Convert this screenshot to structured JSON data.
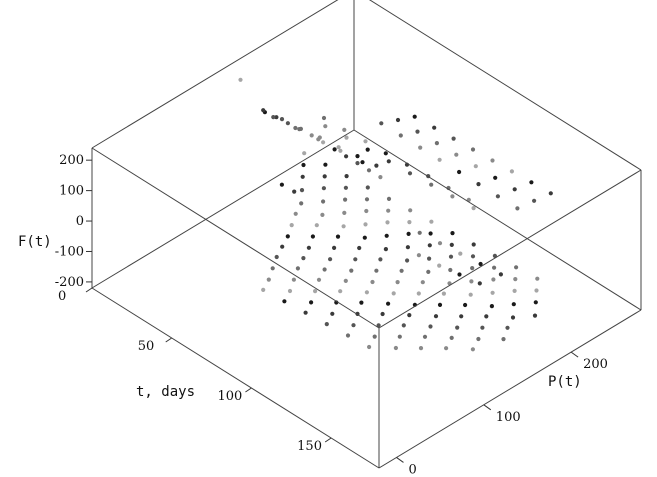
{
  "chart_data": {
    "type": "scatter",
    "dimensions": 3,
    "title": "",
    "xlabel": "t, days",
    "ylabel": "P(t)",
    "zlabel": "F(t)",
    "xticks": [
      "0",
      "50",
      "100",
      "150"
    ],
    "yticks": [
      "0",
      "100",
      "200"
    ],
    "zticks": [
      "200",
      "100",
      "0",
      "-100",
      "-200"
    ],
    "xlim": [
      0,
      180
    ],
    "ylim": [
      -20,
      280
    ],
    "zlim": [
      -220,
      240
    ],
    "grid": false,
    "box": true,
    "point_colors": [
      "#1a1a1a",
      "#3a3a3a",
      "#555555",
      "#707070",
      "#8a8a8a",
      "#a6a6a6"
    ],
    "series": [
      {
        "points": [
          [
            0,
            178,
            15
          ],
          [
            5,
            182,
            8
          ],
          [
            10,
            186,
            -2
          ],
          [
            15,
            190,
            -12
          ],
          [
            20,
            195,
            -25
          ],
          [
            25,
            199,
            -38
          ],
          [
            30,
            203,
            -52
          ],
          [
            35,
            207,
            -65
          ],
          [
            40,
            211,
            -78
          ],
          [
            45,
            215,
            -92
          ],
          [
            50,
            219,
            -105
          ]
        ]
      },
      {
        "points": [
          [
            0,
            176,
            25
          ],
          [
            8,
            183,
            10
          ],
          [
            16,
            190,
            -8
          ],
          [
            24,
            197,
            -22
          ],
          [
            32,
            204,
            -40
          ],
          [
            40,
            211,
            -55
          ],
          [
            48,
            218,
            -72
          ]
        ]
      },
      {
        "points": [
          [
            2,
            184,
            -5
          ],
          [
            12,
            191,
            -20
          ],
          [
            22,
            199,
            -38
          ],
          [
            32,
            206,
            -55
          ],
          [
            42,
            213,
            -72
          ]
        ]
      },
      {
        "points": [
          [
            25,
            200,
            40
          ],
          [
            35,
            205,
            25
          ],
          [
            45,
            211,
            10
          ],
          [
            55,
            216,
            -5
          ],
          [
            65,
            222,
            -20
          ],
          [
            75,
            228,
            -35
          ],
          [
            85,
            233,
            -50
          ],
          [
            95,
            238,
            -65
          ]
        ]
      },
      {
        "points": [
          [
            28,
            196,
            30
          ],
          [
            38,
            202,
            15
          ],
          [
            48,
            208,
            -2
          ],
          [
            58,
            214,
            -18
          ],
          [
            68,
            220,
            -35
          ],
          [
            78,
            226,
            -50
          ],
          [
            88,
            232,
            -66
          ],
          [
            98,
            238,
            -82
          ]
        ]
      },
      {
        "points": [
          [
            40,
            150,
            60
          ],
          [
            50,
            156,
            45
          ],
          [
            60,
            162,
            30
          ],
          [
            70,
            168,
            15
          ],
          [
            80,
            174,
            0
          ],
          [
            90,
            180,
            -15
          ],
          [
            100,
            186,
            -30
          ],
          [
            110,
            192,
            -45
          ],
          [
            120,
            198,
            -60
          ],
          [
            130,
            204,
            -75
          ],
          [
            140,
            210,
            -90
          ],
          [
            150,
            216,
            -105
          ]
        ]
      },
      {
        "points": [
          [
            45,
            140,
            55
          ],
          [
            55,
            146,
            40
          ],
          [
            65,
            152,
            25
          ],
          [
            75,
            158,
            10
          ],
          [
            85,
            164,
            -5
          ],
          [
            95,
            170,
            -20
          ],
          [
            105,
            176,
            -35
          ],
          [
            115,
            182,
            -50
          ],
          [
            125,
            188,
            -65
          ],
          [
            135,
            194,
            -80
          ],
          [
            145,
            200,
            -95
          ],
          [
            155,
            206,
            -110
          ]
        ]
      },
      {
        "points": [
          [
            50,
            130,
            50
          ],
          [
            60,
            136,
            35
          ],
          [
            70,
            142,
            20
          ],
          [
            80,
            148,
            5
          ],
          [
            90,
            154,
            -10
          ],
          [
            100,
            160,
            -25
          ],
          [
            110,
            166,
            -40
          ],
          [
            120,
            172,
            -55
          ],
          [
            130,
            178,
            -70
          ],
          [
            140,
            184,
            -85
          ],
          [
            150,
            190,
            -100
          ],
          [
            160,
            196,
            -115
          ]
        ]
      },
      {
        "points": [
          [
            55,
            120,
            40
          ],
          [
            65,
            126,
            25
          ],
          [
            75,
            132,
            10
          ],
          [
            85,
            138,
            -5
          ],
          [
            95,
            144,
            -20
          ],
          [
            105,
            150,
            -35
          ],
          [
            115,
            156,
            -50
          ],
          [
            125,
            162,
            -65
          ],
          [
            135,
            168,
            -80
          ],
          [
            145,
            174,
            -95
          ],
          [
            155,
            180,
            -110
          ],
          [
            165,
            186,
            -125
          ]
        ]
      },
      {
        "points": [
          [
            60,
            110,
            30
          ],
          [
            70,
            116,
            15
          ],
          [
            80,
            122,
            0
          ],
          [
            90,
            128,
            -15
          ],
          [
            100,
            134,
            -30
          ],
          [
            110,
            140,
            -45
          ],
          [
            120,
            146,
            -60
          ],
          [
            130,
            152,
            -75
          ],
          [
            140,
            158,
            -90
          ],
          [
            150,
            164,
            -105
          ],
          [
            160,
            170,
            -120
          ]
        ]
      },
      {
        "points": [
          [
            62,
            100,
            20
          ],
          [
            72,
            106,
            5
          ],
          [
            82,
            112,
            -10
          ],
          [
            92,
            118,
            -25
          ],
          [
            102,
            124,
            -40
          ],
          [
            112,
            130,
            -55
          ],
          [
            122,
            136,
            -70
          ],
          [
            132,
            142,
            -85
          ],
          [
            142,
            148,
            -100
          ],
          [
            152,
            154,
            -115
          ],
          [
            162,
            160,
            -130
          ]
        ]
      },
      {
        "points": [
          [
            65,
            90,
            10
          ],
          [
            75,
            96,
            -5
          ],
          [
            85,
            102,
            -20
          ],
          [
            95,
            108,
            -35
          ],
          [
            105,
            114,
            -50
          ],
          [
            115,
            120,
            -65
          ],
          [
            125,
            126,
            -80
          ],
          [
            135,
            132,
            -95
          ],
          [
            145,
            138,
            -110
          ],
          [
            155,
            144,
            -125
          ],
          [
            165,
            150,
            -140
          ]
        ]
      },
      {
        "points": [
          [
            68,
            80,
            0
          ],
          [
            78,
            86,
            -15
          ],
          [
            88,
            92,
            -30
          ],
          [
            98,
            98,
            -45
          ],
          [
            108,
            104,
            -60
          ],
          [
            118,
            110,
            -75
          ],
          [
            128,
            116,
            -90
          ],
          [
            138,
            122,
            -105
          ],
          [
            148,
            128,
            -120
          ],
          [
            158,
            134,
            -135
          ]
        ]
      },
      {
        "points": [
          [
            70,
            70,
            -10
          ],
          [
            80,
            76,
            -25
          ],
          [
            90,
            82,
            -40
          ],
          [
            100,
            88,
            -55
          ],
          [
            110,
            94,
            -70
          ],
          [
            120,
            100,
            -85
          ],
          [
            130,
            106,
            -100
          ],
          [
            140,
            112,
            -115
          ],
          [
            150,
            118,
            -130
          ],
          [
            160,
            124,
            -145
          ]
        ]
      },
      {
        "points": [
          [
            72,
            60,
            -20
          ],
          [
            82,
            66,
            -35
          ],
          [
            92,
            72,
            -50
          ],
          [
            102,
            78,
            -65
          ],
          [
            112,
            84,
            -80
          ],
          [
            122,
            90,
            -95
          ],
          [
            132,
            96,
            -110
          ],
          [
            142,
            102,
            -125
          ],
          [
            152,
            108,
            -140
          ]
        ]
      },
      {
        "points": [
          [
            75,
            50,
            -30
          ],
          [
            85,
            56,
            -45
          ],
          [
            95,
            62,
            -60
          ],
          [
            105,
            68,
            -75
          ],
          [
            115,
            74,
            -90
          ],
          [
            125,
            80,
            -105
          ],
          [
            135,
            86,
            -120
          ],
          [
            145,
            92,
            -135
          ]
        ]
      },
      {
        "points": [
          [
            78,
            40,
            -40
          ],
          [
            88,
            46,
            -55
          ],
          [
            98,
            52,
            -70
          ],
          [
            108,
            58,
            -85
          ],
          [
            118,
            64,
            -100
          ],
          [
            128,
            70,
            -115
          ],
          [
            138,
            76,
            -130
          ]
        ]
      },
      {
        "points": [
          [
            80,
            30,
            -50
          ],
          [
            90,
            36,
            -65
          ],
          [
            100,
            42,
            -80
          ],
          [
            110,
            48,
            -95
          ],
          [
            120,
            54,
            -110
          ],
          [
            130,
            60,
            -125
          ]
        ]
      },
      {
        "points": [
          [
            60,
            240,
            90
          ],
          [
            70,
            244,
            80
          ],
          [
            80,
            248,
            70
          ],
          [
            90,
            252,
            60
          ],
          [
            100,
            256,
            50
          ],
          [
            110,
            260,
            40
          ],
          [
            120,
            264,
            30
          ],
          [
            130,
            268,
            20
          ]
        ]
      },
      {
        "points": [
          [
            55,
            230,
            80
          ],
          [
            65,
            234,
            68
          ],
          [
            75,
            238,
            56
          ],
          [
            85,
            242,
            44
          ],
          [
            95,
            246,
            32
          ],
          [
            105,
            250,
            20
          ],
          [
            115,
            254,
            8
          ],
          [
            125,
            258,
            -4
          ]
        ]
      },
      {
        "points": [
          [
            50,
            220,
            70
          ],
          [
            60,
            224,
            56
          ],
          [
            70,
            228,
            42
          ],
          [
            80,
            232,
            28
          ],
          [
            90,
            236,
            14
          ],
          [
            100,
            240,
            0
          ],
          [
            110,
            244,
            -14
          ],
          [
            120,
            248,
            -28
          ]
        ]
      },
      {
        "points": [
          [
            85,
            200,
            -140
          ],
          [
            95,
            205,
            -150
          ],
          [
            105,
            210,
            -160
          ],
          [
            115,
            215,
            -170
          ],
          [
            125,
            220,
            -180
          ]
        ]
      },
      {
        "points": [
          [
            90,
            190,
            -180
          ],
          [
            100,
            195,
            -190
          ],
          [
            110,
            200,
            -195
          ],
          [
            120,
            205,
            -200
          ]
        ]
      },
      {
        "points": [
          [
            0,
            150,
            170
          ]
        ]
      },
      {
        "points": [
          [
            15,
            170,
            -160
          ],
          [
            20,
            175,
            -175
          ]
        ]
      }
    ]
  }
}
